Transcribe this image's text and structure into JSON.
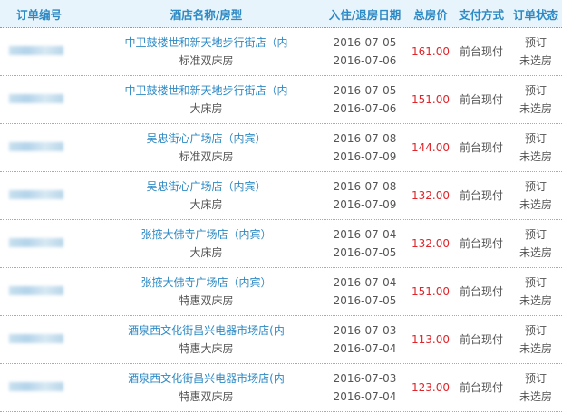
{
  "header": {
    "order_no": "订单编号",
    "hotel": "酒店名称/房型",
    "dates": "入住/退房日期",
    "price": "总房价",
    "payment": "支付方式",
    "status": "订单状态"
  },
  "colors": {
    "accent": "#2e8ac4",
    "price": "#e0252a",
    "header_bg": "#e8f4fb"
  },
  "orders": [
    {
      "hotel": "中卫鼓楼世和新天地步行街店（内",
      "room": "标准双床房",
      "checkin": "2016-07-05",
      "checkout": "2016-07-06",
      "price": "161.00",
      "payment": "前台现付",
      "status1": "预订",
      "status2": "未选房"
    },
    {
      "hotel": "中卫鼓楼世和新天地步行街店（内",
      "room": "大床房",
      "checkin": "2016-07-05",
      "checkout": "2016-07-06",
      "price": "151.00",
      "payment": "前台现付",
      "status1": "预订",
      "status2": "未选房"
    },
    {
      "hotel": "吴忠街心广场店（内宾）",
      "room": "标准双床房",
      "checkin": "2016-07-08",
      "checkout": "2016-07-09",
      "price": "144.00",
      "payment": "前台现付",
      "status1": "预订",
      "status2": "未选房"
    },
    {
      "hotel": "吴忠街心广场店（内宾）",
      "room": "大床房",
      "checkin": "2016-07-08",
      "checkout": "2016-07-09",
      "price": "132.00",
      "payment": "前台现付",
      "status1": "预订",
      "status2": "未选房"
    },
    {
      "hotel": "张掖大佛寺广场店（内宾）",
      "room": "大床房",
      "checkin": "2016-07-04",
      "checkout": "2016-07-05",
      "price": "132.00",
      "payment": "前台现付",
      "status1": "预订",
      "status2": "未选房"
    },
    {
      "hotel": "张掖大佛寺广场店（内宾）",
      "room": "特惠双床房",
      "checkin": "2016-07-04",
      "checkout": "2016-07-05",
      "price": "151.00",
      "payment": "前台现付",
      "status1": "预订",
      "status2": "未选房"
    },
    {
      "hotel": "酒泉西文化街昌兴电器市场店(内",
      "room": "特惠大床房",
      "checkin": "2016-07-03",
      "checkout": "2016-07-04",
      "price": "113.00",
      "payment": "前台现付",
      "status1": "预订",
      "status2": "未选房"
    },
    {
      "hotel": "酒泉西文化街昌兴电器市场店(内",
      "room": "特惠双床房",
      "checkin": "2016-07-03",
      "checkout": "2016-07-04",
      "price": "123.00",
      "payment": "前台现付",
      "status1": "预订",
      "status2": "未选房"
    }
  ]
}
